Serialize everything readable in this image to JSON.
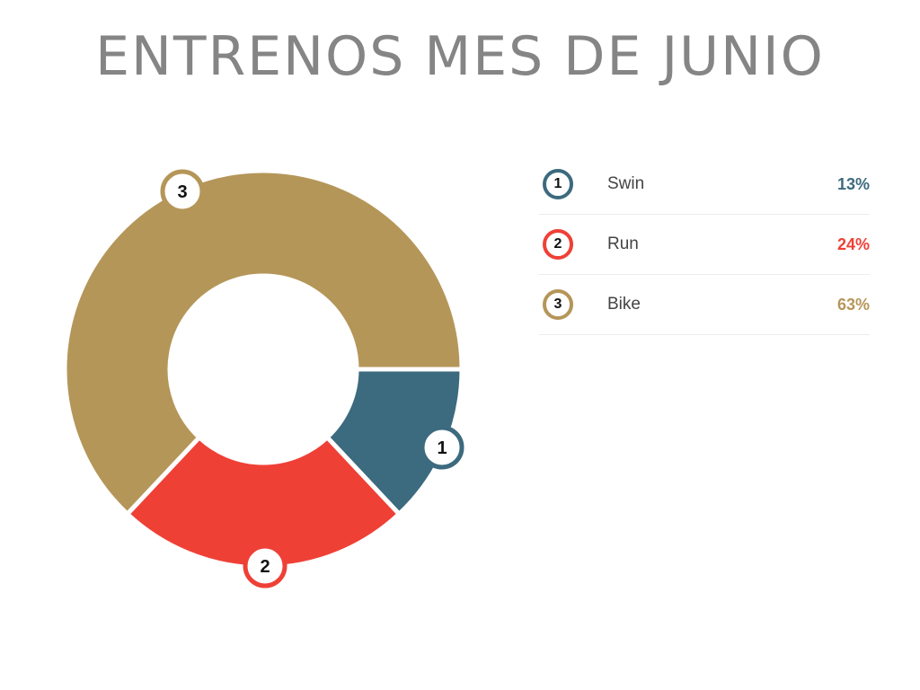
{
  "title": "ENTRENOS MES DE JUNIO",
  "legend": [
    {
      "num": "1",
      "label": "Swin",
      "value": "13%",
      "color": "#3c6a7e"
    },
    {
      "num": "2",
      "label": "Run",
      "value": "24%",
      "color": "#ef4036"
    },
    {
      "num": "3",
      "label": "Bike",
      "value": "63%",
      "color": "#b59659"
    }
  ],
  "chart_data": {
    "type": "pie",
    "subtype": "donut",
    "title": "ENTRENOS MES DE JUNIO",
    "categories": [
      "Swin",
      "Run",
      "Bike"
    ],
    "values": [
      13,
      24,
      63
    ],
    "units": "%",
    "colors": [
      "#3c6a7e",
      "#ef4036",
      "#b59659"
    ],
    "slice_labels": [
      "1",
      "2",
      "3"
    ],
    "legend_position": "right"
  }
}
